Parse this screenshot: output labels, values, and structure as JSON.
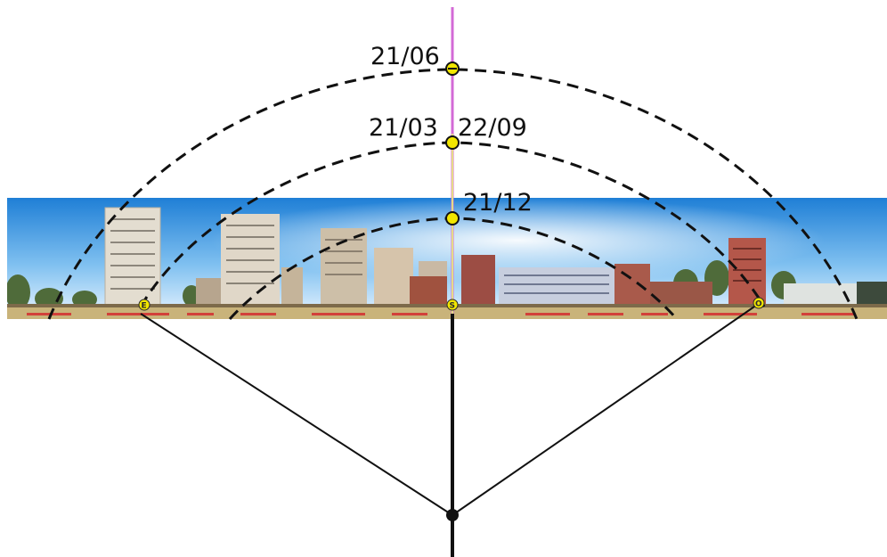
{
  "diagram": {
    "arc_labels": {
      "summer": "21/06",
      "equinox_march": "21/03",
      "equinox_september": "22/09",
      "winter": "21/12"
    },
    "horizon_markers": {
      "east": "E",
      "south": "S",
      "west": "O"
    },
    "colors": {
      "arc_stroke": "#111111",
      "meridian": "#d36ad6",
      "sun_marker": "#f2e600",
      "sky_top": "#1f7fd6",
      "sky_horizon": "#eef6ff",
      "ground": "#c9b37a",
      "baseline_red": "#d2403a"
    }
  }
}
